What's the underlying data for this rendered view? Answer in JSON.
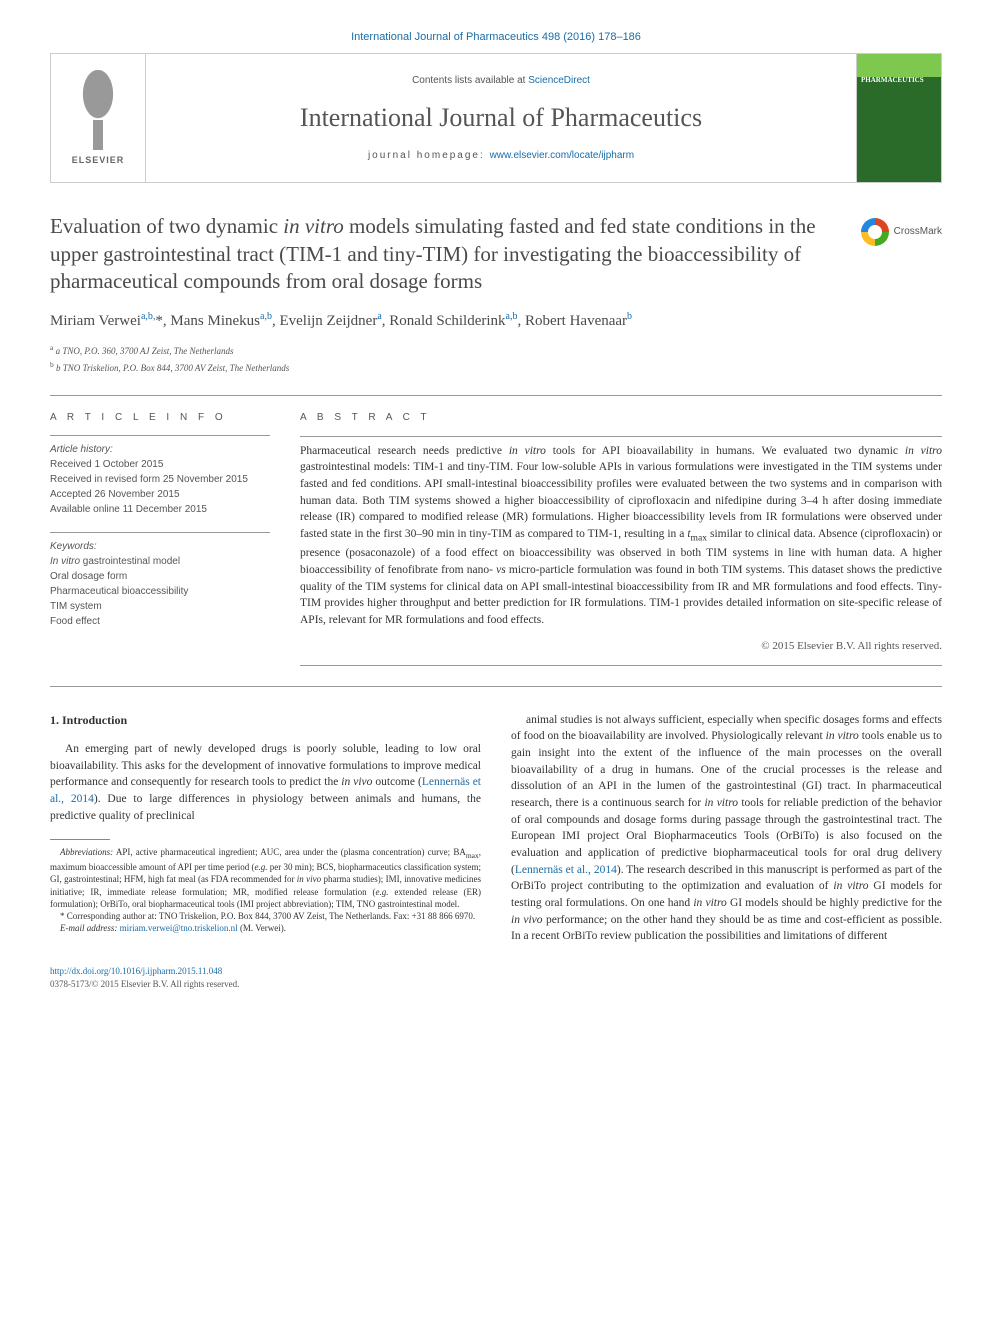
{
  "top_citation": "International Journal of Pharmaceutics 498 (2016) 178–186",
  "header": {
    "contents_prefix": "Contents lists available at ",
    "contents_link": "ScienceDirect",
    "journal_name": "International Journal of Pharmaceutics",
    "homepage_prefix": "journal homepage: ",
    "homepage_link": "www.elsevier.com/locate/ijpharm",
    "publisher": "ELSEVIER",
    "cover_label": "PHARMACEUTICS"
  },
  "crossmark_label": "CrossMark",
  "title": "Evaluation of two dynamic in vitro models simulating fasted and fed state conditions in the upper gastrointestinal tract (TIM-1 and tiny-TIM) for investigating the bioaccessibility of pharmaceutical compounds from oral dosage forms",
  "authors_html": "Miriam Verwei<sup>a,b,*</sup>, Mans Minekus<sup>a,b</sup>, Evelijn Zeijdner<sup>a</sup>, Ronald Schilderink<sup>a,b</sup>, Robert Havenaar<sup>b</sup>",
  "affiliations": [
    "a TNO, P.O. 360, 3700 AJ Zeist, The Netherlands",
    "b TNO Triskelion, P.O. Box 844, 3700 AV Zeist, The Netherlands"
  ],
  "article_info": {
    "header": "A R T I C L E   I N F O",
    "history_label": "Article history:",
    "history": [
      "Received 1 October 2015",
      "Received in revised form 25 November 2015",
      "Accepted 26 November 2015",
      "Available online 11 December 2015"
    ],
    "keywords_label": "Keywords:",
    "keywords": [
      "In vitro gastrointestinal model",
      "Oral dosage form",
      "Pharmaceutical bioaccessibility",
      "TIM system",
      "Food effect"
    ]
  },
  "abstract": {
    "header": "A B S T R A C T",
    "text": "Pharmaceutical research needs predictive in vitro tools for API bioavailability in humans. We evaluated two dynamic in vitro gastrointestinal models: TIM-1 and tiny-TIM. Four low-soluble APIs in various formulations were investigated in the TIM systems under fasted and fed conditions. API small-intestinal bioaccessibility profiles were evaluated between the two systems and in comparison with human data. Both TIM systems showed a higher bioaccessibility of ciprofloxacin and nifedipine during 3–4 h after dosing immediate release (IR) compared to modified release (MR) formulations. Higher bioaccessibility levels from IR formulations were observed under fasted state in the first 30–90 min in tiny-TIM as compared to TIM-1, resulting in a tmax similar to clinical data. Absence (ciprofloxacin) or presence (posaconazole) of a food effect on bioaccessibility was observed in both TIM systems in line with human data. A higher bioaccessibility of fenofibrate from nano- vs micro-particle formulation was found in both TIM systems. This dataset shows the predictive quality of the TIM systems for clinical data on API small-intestinal bioaccessibility from IR and MR formulations and food effects. Tiny-TIM provides higher throughput and better prediction for IR formulations. TIM-1 provides detailed information on site-specific release of APIs, relevant for MR formulations and food effects.",
    "copyright": "© 2015 Elsevier B.V. All rights reserved."
  },
  "intro": {
    "heading": "1. Introduction",
    "para1": "An emerging part of newly developed drugs is poorly soluble, leading to low oral bioavailability. This asks for the development of innovative formulations to improve medical performance and consequently for research tools to predict the in vivo outcome (Lennernäs et al., 2014). Due to large differences in physiology between animals and humans, the predictive quality of preclinical",
    "para2": "animal studies is not always sufficient, especially when specific dosages forms and effects of food on the bioavailability are involved. Physiologically relevant in vitro tools enable us to gain insight into the extent of the influence of the main processes on the overall bioavailability of a drug in humans. One of the crucial processes is the release and dissolution of an API in the lumen of the gastrointestinal (GI) tract. In pharmaceutical research, there is a continuous search for in vitro tools for reliable prediction of the behavior of oral compounds and dosage forms during passage through the gastrointestinal tract. The European IMI project Oral Biopharmaceutics Tools (OrBiTo) is also focused on the evaluation and application of predictive biopharmaceutical tools for oral drug delivery (Lennernäs et al., 2014). The research described in this manuscript is performed as part of the OrBiTo project contributing to the optimization and evaluation of in vitro GI models for testing oral formulations. On one hand in vitro GI models should be highly predictive for the in vivo performance; on the other hand they should be as time and cost-efficient as possible. In a recent OrBiTo review publication the possibilities and limitations of different"
  },
  "footnotes": {
    "abbreviations": "Abbreviations: API, active pharmaceutical ingredient; AUC, area under the (plasma concentration) curve; BAmax, maximum bioaccessible amount of API per time period (e.g. per 30 min); BCS, biopharmaceutics classification system; GI, gastrointestinal; HFM, high fat meal (as FDA recommended for in vivo pharma studies); IMI, innovative medicines initiative; IR, immediate release formulation; MR, modified release formulation (e.g. extended release (ER) formulation); OrBiTo, oral biopharmaceutical tools (IMI project abbreviation); TIM, TNO gastrointestinal model.",
    "corresponding": "* Corresponding author at: TNO Triskelion, P.O. Box 844, 3700 AV Zeist, The Netherlands. Fax: +31 88 866 6970.",
    "email_label": "E-mail address: ",
    "email": "miriam.verwei@tno.triskelion.nl",
    "email_suffix": " (M. Verwei)."
  },
  "footer": {
    "doi": "http://dx.doi.org/10.1016/j.ijpharm.2015.11.048",
    "issn": "0378-5173/© 2015 Elsevier B.V. All rights reserved."
  },
  "colors": {
    "link": "#1a6ca8",
    "text": "#333333",
    "muted": "#555555",
    "border": "#cccccc",
    "cover_top": "#7ec850",
    "cover_main": "#2a6b2a"
  }
}
